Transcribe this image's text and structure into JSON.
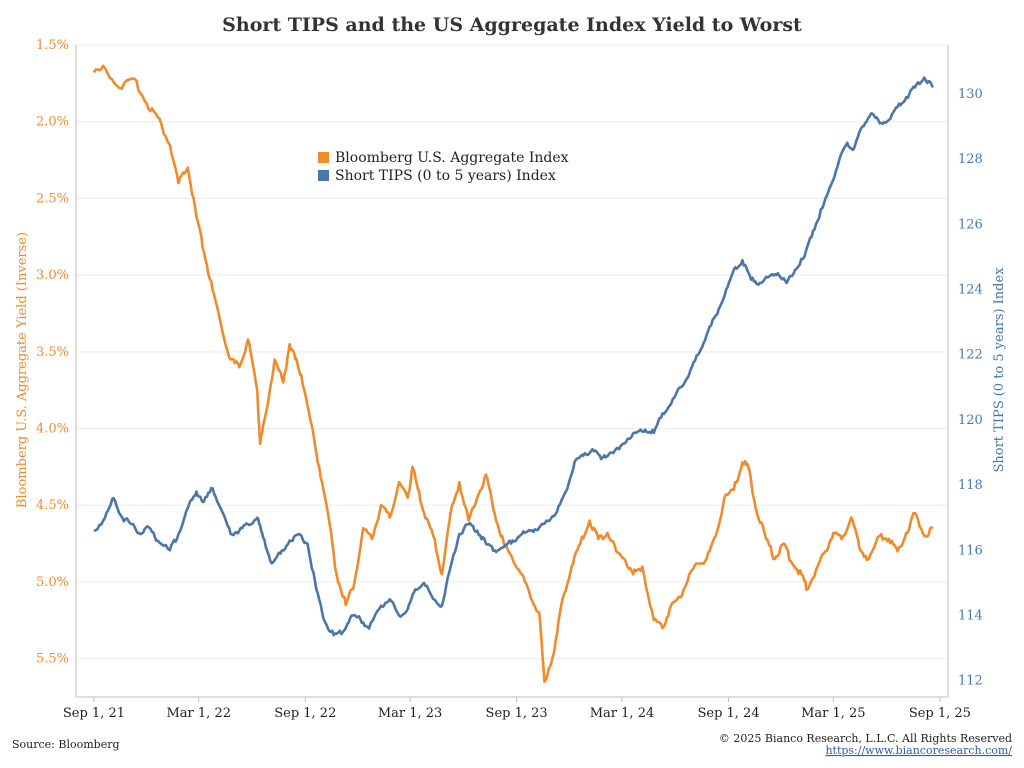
{
  "title": "Short TIPS and the US Aggregate Index Yield to Worst",
  "source": "Source: Bloomberg",
  "copyright": "© 2025 Bianco Research, L.L.C. All Rights Reserved",
  "website": "https://www.biancoresearch.com/",
  "chart_data": {
    "type": "line",
    "title": "Short TIPS and the US Aggregate Index Yield to Worst",
    "x_ticks": [
      "Sep 1, 21",
      "Mar 1, 22",
      "Sep 1, 22",
      "Mar 1, 23",
      "Sep 1, 23",
      "Mar 1, 24",
      "Sep 1, 24",
      "Mar 1, 25",
      "Sep 1, 25"
    ],
    "xlim": [
      "2021-08-01",
      "2025-09-15"
    ],
    "y_left": {
      "label": "Bloomberg U.S. Aggregate Yield (Inverse)",
      "inverted": true,
      "range": [
        1.5,
        5.75
      ],
      "ticks": [
        "1.5%",
        "2.0%",
        "2.5%",
        "3.0%",
        "3.5%",
        "4.0%",
        "4.5%",
        "5.0%",
        "5.5%"
      ],
      "tick_values": [
        1.5,
        2.0,
        2.5,
        3.0,
        3.5,
        4.0,
        4.5,
        5.0,
        5.5
      ]
    },
    "y_right": {
      "label": "Short TIPS (0 to 5 years) Index",
      "range": [
        111.5,
        131.5
      ],
      "ticks": [
        "112",
        "114",
        "116",
        "118",
        "120",
        "122",
        "124",
        "126",
        "128",
        "130"
      ],
      "tick_values": [
        112,
        114,
        116,
        118,
        120,
        122,
        124,
        126,
        128,
        130
      ]
    },
    "grid": true,
    "legend_position": "top-center",
    "series": [
      {
        "name": "Bloomberg U.S. Aggregate Index",
        "axis": "left",
        "color": "#ef8b2c",
        "points": [
          [
            "2021-09-01",
            1.68
          ],
          [
            "2021-09-20",
            1.65
          ],
          [
            "2021-10-15",
            1.78
          ],
          [
            "2021-11-10",
            1.72
          ],
          [
            "2021-12-01",
            1.88
          ],
          [
            "2021-12-20",
            1.97
          ],
          [
            "2022-01-10",
            2.15
          ],
          [
            "2022-01-25",
            2.4
          ],
          [
            "2022-02-10",
            2.3
          ],
          [
            "2022-02-25",
            2.62
          ],
          [
            "2022-03-10",
            2.85
          ],
          [
            "2022-03-25",
            3.1
          ],
          [
            "2022-04-10",
            3.35
          ],
          [
            "2022-04-25",
            3.55
          ],
          [
            "2022-05-10",
            3.6
          ],
          [
            "2022-05-25",
            3.42
          ],
          [
            "2022-06-10",
            3.75
          ],
          [
            "2022-06-15",
            4.1
          ],
          [
            "2022-06-25",
            3.9
          ],
          [
            "2022-07-10",
            3.55
          ],
          [
            "2022-07-25",
            3.7
          ],
          [
            "2022-08-05",
            3.45
          ],
          [
            "2022-08-15",
            3.55
          ],
          [
            "2022-08-25",
            3.65
          ],
          [
            "2022-09-10",
            3.95
          ],
          [
            "2022-09-25",
            4.25
          ],
          [
            "2022-10-10",
            4.55
          ],
          [
            "2022-10-25",
            4.95
          ],
          [
            "2022-11-10",
            5.15
          ],
          [
            "2022-11-25",
            5.0
          ],
          [
            "2022-12-10",
            4.65
          ],
          [
            "2022-12-25",
            4.72
          ],
          [
            "2023-01-10",
            4.5
          ],
          [
            "2023-01-25",
            4.58
          ],
          [
            "2023-02-10",
            4.35
          ],
          [
            "2023-02-25",
            4.45
          ],
          [
            "2023-03-05",
            4.25
          ],
          [
            "2023-03-15",
            4.4
          ],
          [
            "2023-03-25",
            4.55
          ],
          [
            "2023-04-10",
            4.7
          ],
          [
            "2023-04-25",
            4.95
          ],
          [
            "2023-05-10",
            4.55
          ],
          [
            "2023-05-25",
            4.35
          ],
          [
            "2023-06-10",
            4.6
          ],
          [
            "2023-06-25",
            4.45
          ],
          [
            "2023-07-10",
            4.3
          ],
          [
            "2023-07-25",
            4.55
          ],
          [
            "2023-08-10",
            4.75
          ],
          [
            "2023-08-25",
            4.85
          ],
          [
            "2023-09-10",
            4.95
          ],
          [
            "2023-09-25",
            5.1
          ],
          [
            "2023-10-10",
            5.2
          ],
          [
            "2023-10-19",
            5.65
          ],
          [
            "2023-11-05",
            5.45
          ],
          [
            "2023-11-20",
            5.1
          ],
          [
            "2023-12-05",
            4.9
          ],
          [
            "2023-12-20",
            4.75
          ],
          [
            "2024-01-05",
            4.6
          ],
          [
            "2024-01-20",
            4.72
          ],
          [
            "2024-02-05",
            4.68
          ],
          [
            "2024-02-20",
            4.8
          ],
          [
            "2024-03-05",
            4.85
          ],
          [
            "2024-03-20",
            4.95
          ],
          [
            "2024-04-05",
            4.9
          ],
          [
            "2024-04-25",
            5.25
          ],
          [
            "2024-05-10",
            5.3
          ],
          [
            "2024-05-25",
            5.15
          ],
          [
            "2024-06-10",
            5.1
          ],
          [
            "2024-06-25",
            4.95
          ],
          [
            "2024-07-10",
            4.88
          ],
          [
            "2024-07-25",
            4.85
          ],
          [
            "2024-08-10",
            4.7
          ],
          [
            "2024-08-25",
            4.45
          ],
          [
            "2024-09-10",
            4.4
          ],
          [
            "2024-09-25",
            4.22
          ],
          [
            "2024-10-05",
            4.25
          ],
          [
            "2024-10-20",
            4.55
          ],
          [
            "2024-11-05",
            4.72
          ],
          [
            "2024-11-20",
            4.85
          ],
          [
            "2024-12-05",
            4.75
          ],
          [
            "2024-12-20",
            4.88
          ],
          [
            "2025-01-05",
            4.95
          ],
          [
            "2025-01-15",
            5.05
          ],
          [
            "2025-01-30",
            4.92
          ],
          [
            "2025-02-15",
            4.8
          ],
          [
            "2025-03-01",
            4.68
          ],
          [
            "2025-03-15",
            4.72
          ],
          [
            "2025-04-01",
            4.58
          ],
          [
            "2025-04-15",
            4.78
          ],
          [
            "2025-05-01",
            4.85
          ],
          [
            "2025-05-20",
            4.7
          ],
          [
            "2025-06-05",
            4.72
          ],
          [
            "2025-06-20",
            4.8
          ],
          [
            "2025-07-05",
            4.68
          ],
          [
            "2025-07-20",
            4.55
          ],
          [
            "2025-08-05",
            4.7
          ],
          [
            "2025-08-20",
            4.65
          ]
        ]
      },
      {
        "name": "Short TIPS (0 to 5 years) Index",
        "axis": "right",
        "color": "#4a77a8",
        "points": [
          [
            "2021-09-01",
            116.6
          ],
          [
            "2021-09-20",
            117.0
          ],
          [
            "2021-10-05",
            117.6
          ],
          [
            "2021-10-20",
            117.0
          ],
          [
            "2021-11-05",
            116.8
          ],
          [
            "2021-11-20",
            116.5
          ],
          [
            "2021-12-05",
            116.7
          ],
          [
            "2021-12-20",
            116.3
          ],
          [
            "2022-01-10",
            116.0
          ],
          [
            "2022-01-25",
            116.5
          ],
          [
            "2022-02-10",
            117.3
          ],
          [
            "2022-02-25",
            117.8
          ],
          [
            "2022-03-10",
            117.5
          ],
          [
            "2022-03-25",
            117.9
          ],
          [
            "2022-04-10",
            117.2
          ],
          [
            "2022-04-25",
            116.5
          ],
          [
            "2022-05-10",
            116.6
          ],
          [
            "2022-05-25",
            116.8
          ],
          [
            "2022-06-10",
            117.0
          ],
          [
            "2022-06-20",
            116.4
          ],
          [
            "2022-07-05",
            115.6
          ],
          [
            "2022-07-20",
            115.9
          ],
          [
            "2022-08-05",
            116.3
          ],
          [
            "2022-08-20",
            116.5
          ],
          [
            "2022-09-05",
            116.2
          ],
          [
            "2022-09-20",
            114.8
          ],
          [
            "2022-10-05",
            113.8
          ],
          [
            "2022-10-20",
            113.4
          ],
          [
            "2022-11-05",
            113.5
          ],
          [
            "2022-11-20",
            114.0
          ],
          [
            "2022-12-05",
            113.9
          ],
          [
            "2022-12-20",
            113.6
          ],
          [
            "2023-01-10",
            114.3
          ],
          [
            "2023-01-25",
            114.5
          ],
          [
            "2023-02-10",
            114.0
          ],
          [
            "2023-02-25",
            114.2
          ],
          [
            "2023-03-10",
            114.8
          ],
          [
            "2023-03-25",
            115.0
          ],
          [
            "2023-04-10",
            114.5
          ],
          [
            "2023-04-25",
            114.3
          ],
          [
            "2023-05-10",
            115.5
          ],
          [
            "2023-05-25",
            116.5
          ],
          [
            "2023-06-10",
            116.8
          ],
          [
            "2023-06-25",
            116.6
          ],
          [
            "2023-07-10",
            116.2
          ],
          [
            "2023-07-25",
            116.0
          ],
          [
            "2023-08-10",
            116.1
          ],
          [
            "2023-08-25",
            116.3
          ],
          [
            "2023-09-10",
            116.5
          ],
          [
            "2023-09-25",
            116.6
          ],
          [
            "2023-10-10",
            116.7
          ],
          [
            "2023-10-25",
            116.9
          ],
          [
            "2023-11-10",
            117.2
          ],
          [
            "2023-11-25",
            117.8
          ],
          [
            "2023-12-10",
            118.7
          ],
          [
            "2023-12-25",
            118.9
          ],
          [
            "2024-01-10",
            119.1
          ],
          [
            "2024-01-25",
            118.8
          ],
          [
            "2024-02-10",
            119.0
          ],
          [
            "2024-02-25",
            119.1
          ],
          [
            "2024-03-10",
            119.4
          ],
          [
            "2024-03-25",
            119.6
          ],
          [
            "2024-04-10",
            119.7
          ],
          [
            "2024-04-25",
            119.6
          ],
          [
            "2024-05-10",
            120.2
          ],
          [
            "2024-05-25",
            120.5
          ],
          [
            "2024-06-10",
            121.0
          ],
          [
            "2024-06-25",
            121.4
          ],
          [
            "2024-07-10",
            122.0
          ],
          [
            "2024-07-25",
            122.6
          ],
          [
            "2024-08-10",
            123.2
          ],
          [
            "2024-08-25",
            123.8
          ],
          [
            "2024-09-10",
            124.6
          ],
          [
            "2024-09-25",
            124.9
          ],
          [
            "2024-10-10",
            124.3
          ],
          [
            "2024-10-25",
            124.2
          ],
          [
            "2024-11-10",
            124.4
          ],
          [
            "2024-11-25",
            124.5
          ],
          [
            "2024-12-10",
            124.2
          ],
          [
            "2024-12-25",
            124.6
          ],
          [
            "2025-01-10",
            125.0
          ],
          [
            "2025-01-25",
            125.8
          ],
          [
            "2025-02-10",
            126.5
          ],
          [
            "2025-02-25",
            127.2
          ],
          [
            "2025-03-10",
            127.9
          ],
          [
            "2025-03-25",
            128.5
          ],
          [
            "2025-04-05",
            128.3
          ],
          [
            "2025-04-20",
            129.0
          ],
          [
            "2025-05-05",
            129.4
          ],
          [
            "2025-05-20",
            129.1
          ],
          [
            "2025-06-05",
            129.2
          ],
          [
            "2025-06-20",
            129.6
          ],
          [
            "2025-07-05",
            129.9
          ],
          [
            "2025-07-20",
            130.2
          ],
          [
            "2025-08-05",
            130.5
          ],
          [
            "2025-08-20",
            130.2
          ]
        ]
      }
    ]
  }
}
